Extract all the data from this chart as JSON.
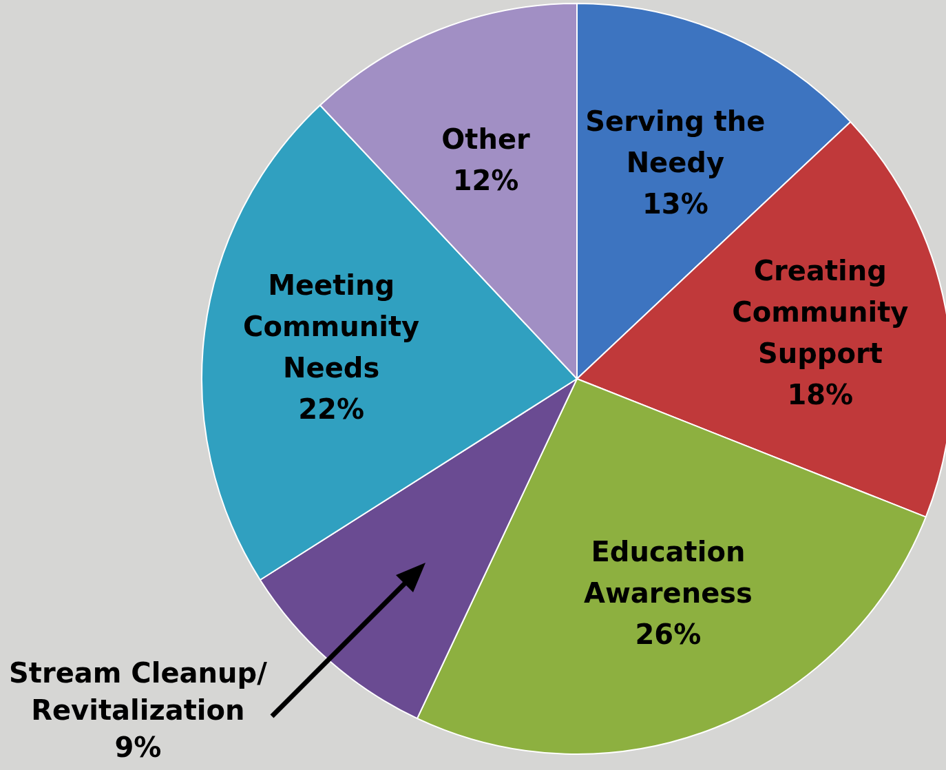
{
  "chart_data": {
    "type": "pie",
    "categories": [
      "Serving the Needy",
      "Creating Community Support",
      "Education Awareness",
      "Stream Cleanup/Revitalization",
      "Meeting Community Needs",
      "Other"
    ],
    "values": [
      13,
      18,
      26,
      9,
      22,
      12
    ],
    "value_labels": [
      "13%",
      "18%",
      "26%",
      "9%",
      "22%",
      "12%"
    ],
    "colors": [
      "#3d74c0",
      "#c0393a",
      "#8db040",
      "#6a4b92",
      "#30a0c0",
      "#a18fc4"
    ],
    "legend": false
  }
}
